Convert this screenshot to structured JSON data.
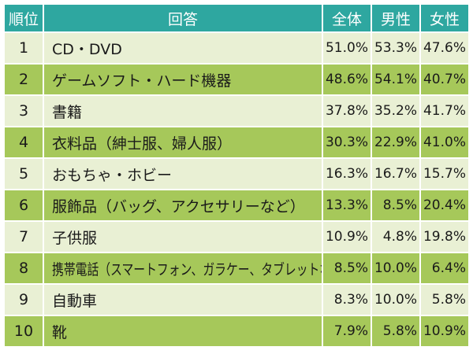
{
  "chart_data": {
    "type": "table",
    "columns": [
      "順位",
      "回答",
      "全体",
      "男性",
      "女性"
    ],
    "rows": [
      {
        "rank": "1",
        "answer": "CD・DVD",
        "overall": "51.0%",
        "male": "53.3%",
        "female": "47.6%"
      },
      {
        "rank": "2",
        "answer": "ゲームソフト・ハード機器",
        "overall": "48.6%",
        "male": "54.1%",
        "female": "40.7%"
      },
      {
        "rank": "3",
        "answer": "書籍",
        "overall": "37.8%",
        "male": "35.2%",
        "female": "41.7%"
      },
      {
        "rank": "4",
        "answer": "衣料品（紳士服、婦人服）",
        "overall": "30.3%",
        "male": "22.9%",
        "female": "41.0%"
      },
      {
        "rank": "5",
        "answer": "おもちゃ・ホビー",
        "overall": "16.3%",
        "male": "16.7%",
        "female": "15.7%"
      },
      {
        "rank": "6",
        "answer": "服飾品（バッグ、アクセサリーなど）",
        "overall": "13.3%",
        "male": "8.5%",
        "female": "20.4%"
      },
      {
        "rank": "7",
        "answer": "子供服",
        "overall": "10.9%",
        "male": "4.8%",
        "female": "19.8%"
      },
      {
        "rank": "8",
        "answer": "携帯電話（スマートフォン、ガラケー、タブレットなど）",
        "overall": "8.5%",
        "male": "10.0%",
        "female": "6.4%"
      },
      {
        "rank": "9",
        "answer": "自動車",
        "overall": "8.3%",
        "male": "10.0%",
        "female": "5.8%"
      },
      {
        "rank": "10",
        "answer": "靴",
        "overall": "7.9%",
        "male": "5.8%",
        "female": "10.9%"
      }
    ],
    "colors": {
      "header": "#2ea7a0",
      "row_light": "#e9f0d4",
      "row_dark": "#a6c85a"
    }
  }
}
